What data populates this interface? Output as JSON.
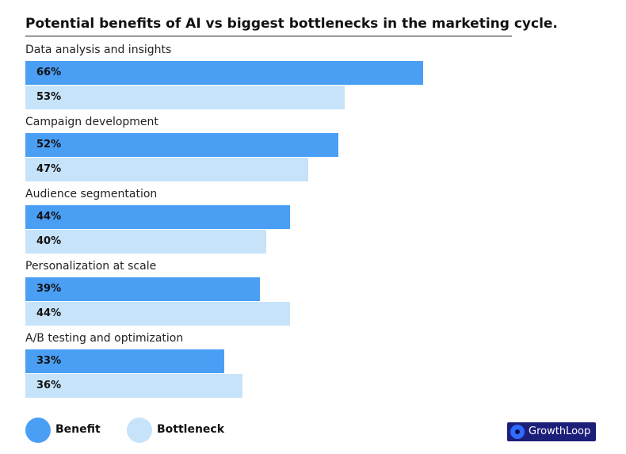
{
  "chart_data": {
    "type": "bar",
    "orientation": "horizontal",
    "title": "Potential benefits of AI vs biggest bottlenecks in the marketing cycle.",
    "categories": [
      "Data analysis and insights",
      "Campaign development",
      "Audience segmentation",
      "Personalization at scale",
      "A/B testing and optimization"
    ],
    "series": [
      {
        "name": "Benefit",
        "color": "#4a9ff5",
        "values": [
          66,
          52,
          44,
          39,
          33
        ],
        "labels": [
          "66%",
          "52%",
          "44%",
          "39%",
          "33%"
        ]
      },
      {
        "name": "Bottleneck",
        "color": "#c6e3f9",
        "values": [
          53,
          47,
          40,
          44,
          36
        ],
        "labels": [
          "53%",
          "47%",
          "40%",
          "44%",
          "36%"
        ]
      }
    ],
    "xlim": [
      0,
      100
    ],
    "xlabel": "",
    "ylabel": "",
    "grid": false,
    "legend_position": "bottom-left"
  },
  "logo": {
    "text": "GrowthLoop"
  }
}
